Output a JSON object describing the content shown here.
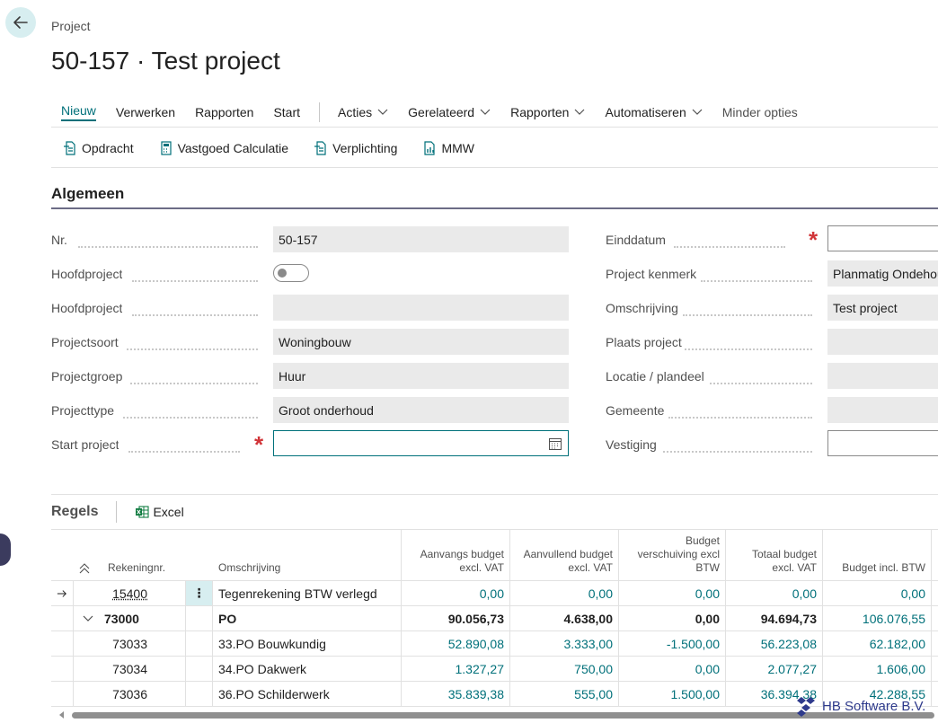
{
  "breadcrumb": "Project",
  "title": "50-157 · Test project",
  "actionbar": {
    "items": [
      "Nieuw",
      "Verwerken",
      "Rapporten",
      "Start"
    ],
    "menus": [
      "Acties",
      "Gerelateerd",
      "Rapporten",
      "Automatiseren"
    ],
    "less_options": "Minder opties"
  },
  "subbar": {
    "items": [
      "Opdracht",
      "Vastgoed Calculatie",
      "Verplichting",
      "MMW"
    ]
  },
  "section": {
    "title": "Algemeen"
  },
  "fields_left": [
    {
      "label": "Nr.",
      "value": "50-157"
    },
    {
      "label": "Hoofdproject",
      "value": ""
    },
    {
      "label": "Hoofdproject",
      "value": ""
    },
    {
      "label": "Projectsoort",
      "value": "Woningbouw"
    },
    {
      "label": "Projectgroep",
      "value": "Huur"
    },
    {
      "label": "Projecttype",
      "value": "Groot onderhoud"
    },
    {
      "label": "Start project",
      "value": ""
    }
  ],
  "fields_right": [
    {
      "label": "Einddatum",
      "value": ""
    },
    {
      "label": "Project kenmerk",
      "value": "Planmatig Ondehoud"
    },
    {
      "label": "Omschrijving",
      "value": "Test project"
    },
    {
      "label": "Plaats project",
      "value": ""
    },
    {
      "label": "Locatie / plandeel",
      "value": ""
    },
    {
      "label": "Gemeente",
      "value": ""
    },
    {
      "label": "Vestiging",
      "value": ""
    }
  ],
  "lines": {
    "title": "Regels",
    "excel": "Excel",
    "headers": {
      "rekeningnr": "Rekeningnr.",
      "omschrijving": "Omschrijving",
      "aanvangs": "Aanvangs budget excl. VAT",
      "aanvullend": "Aanvullend budget excl. VAT",
      "verschuiving": "Budget verschuiving excl BTW",
      "totaal": "Totaal budget excl. VAT",
      "incl": "Budget incl. BTW"
    },
    "rows": [
      {
        "nr": "15400",
        "oms": "Tegenrekening BTW verlegd",
        "v1": "0,00",
        "v2": "0,00",
        "v3": "0,00",
        "v4": "0,00",
        "v5": "0,00"
      },
      {
        "nr": "73000",
        "oms": "PO",
        "v1": "90.056,73",
        "v2": "4.638,00",
        "v3": "0,00",
        "v4": "94.694,73",
        "v5": "106.076,55"
      },
      {
        "nr": "73033",
        "oms": "33.PO Bouwkundig",
        "v1": "52.890,08",
        "v2": "3.333,00",
        "v3": "-1.500,00",
        "v4": "56.223,08",
        "v5": "62.182,00"
      },
      {
        "nr": "73034",
        "oms": "34.PO Dakwerk",
        "v1": "1.327,27",
        "v2": "750,00",
        "v3": "0,00",
        "v4": "2.077,27",
        "v5": "1.606,00"
      },
      {
        "nr": "73036",
        "oms": "36.PO Schilderwerk",
        "v1": "35.839,38",
        "v2": "555,00",
        "v3": "1.500,00",
        "v4": "36.394,38",
        "v5": "42.288,55"
      }
    ]
  },
  "watermark": "HB Software B.V."
}
